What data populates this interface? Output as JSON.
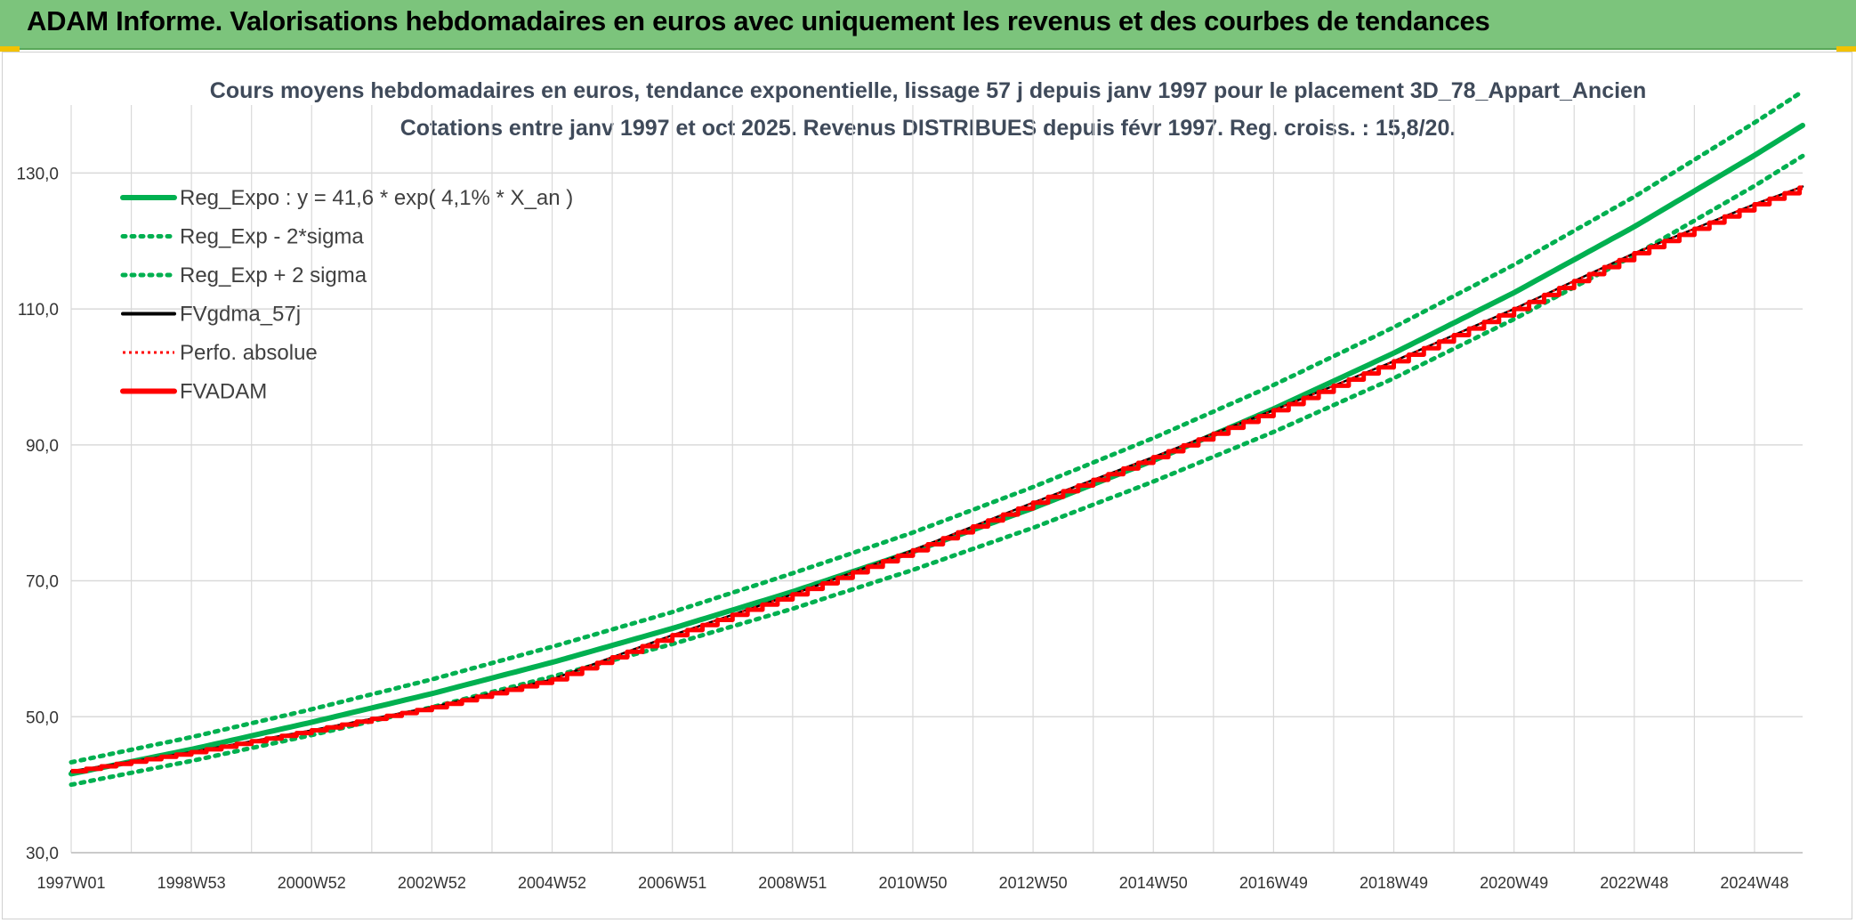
{
  "banner": {
    "title": "ADAM Informe. Valorisations hebdomadaires en euros avec uniquement les revenus et des courbes de tendances"
  },
  "colors": {
    "banner_bg": "#7cc47c",
    "reg_green": "#00b050",
    "fvadam_red": "#ff0000",
    "gdma_black": "#000000",
    "grid": "#d9d9d9"
  },
  "chart_data": {
    "type": "line",
    "title": "Cours moyens hebdomadaires en euros, tendance exponentielle, lissage 57 j depuis janv 1997 pour le placement 3D_78_Appart_Ancien",
    "subtitle": "Cotations entre janv 1997 et oct 2025. Revenus DISTRIBUES depuis févr 1997. Reg. croiss. : 15,8/20.",
    "xlabel": "",
    "ylabel": "",
    "x_range": [
      1997.0,
      2025.8
    ],
    "ylim": [
      30,
      140
    ],
    "y_ticks": [
      "30,0",
      "50,0",
      "70,0",
      "90,0",
      "110,0",
      "130,0"
    ],
    "y_tick_values": [
      30,
      50,
      70,
      90,
      110,
      130
    ],
    "x_tick_labels": [
      "1997W01",
      "1998W53",
      "2000W52",
      "2002W52",
      "2004W52",
      "2006W51",
      "2008W51",
      "2010W50",
      "2012W50",
      "2014W50",
      "2016W49",
      "2018W49",
      "2020W49",
      "2022W48",
      "2024W48"
    ],
    "x_tick_values": [
      1997.0,
      1999.0,
      2001.0,
      2003.0,
      2005.0,
      2007.0,
      2009.0,
      2011.0,
      2013.0,
      2015.0,
      2017.0,
      2019.0,
      2021.0,
      2023.0,
      2025.0
    ],
    "grid": true,
    "legend_position": "top-left",
    "legend": [
      {
        "label": "Reg_Expo : y = 41,6 * exp( 4,1% *  X_an )",
        "color": "#00b050",
        "style": "solid-thick"
      },
      {
        "label": "Reg_Exp - 2*sigma",
        "color": "#00b050",
        "style": "dotted"
      },
      {
        "label": "Reg_Exp + 2 sigma",
        "color": "#00b050",
        "style": "dotted"
      },
      {
        "label": "FVgdma_57j",
        "color": "#000000",
        "style": "solid"
      },
      {
        "label": "Perfo. absolue",
        "color": "#ff0000",
        "style": "dotted-thin"
      },
      {
        "label": "FVADAM",
        "color": "#ff0000",
        "style": "solid-thick"
      }
    ],
    "series": [
      {
        "name": "Reg_Expo : y = 41,6 * exp( 4,1% *  X_an )",
        "x": [
          1997,
          1999,
          2001,
          2003,
          2005,
          2007,
          2009,
          2011,
          2013,
          2015,
          2017,
          2019,
          2021,
          2023,
          2025,
          2025.8
        ],
        "values": [
          41.6,
          45.2,
          49.2,
          53.4,
          58.0,
          63.0,
          68.4,
          74.3,
          80.7,
          87.7,
          95.3,
          103.5,
          112.4,
          122.1,
          132.6,
          137.0
        ]
      },
      {
        "name": "Reg_Exp - 2*sigma",
        "x": [
          1997,
          1999,
          2001,
          2003,
          2005,
          2007,
          2009,
          2011,
          2013,
          2015,
          2017,
          2019,
          2021,
          2023,
          2025,
          2025.8
        ],
        "values": [
          40.0,
          43.5,
          47.3,
          51.4,
          55.9,
          60.7,
          65.9,
          71.6,
          77.8,
          84.6,
          91.9,
          99.8,
          108.5,
          117.9,
          128.1,
          132.5
        ]
      },
      {
        "name": "Reg_Exp + 2 sigma",
        "x": [
          1997,
          1999,
          2001,
          2003,
          2005,
          2007,
          2009,
          2011,
          2013,
          2015,
          2017,
          2019,
          2021,
          2023,
          2025,
          2025.8
        ],
        "values": [
          43.3,
          47.0,
          51.1,
          55.5,
          60.3,
          65.4,
          71.1,
          77.1,
          83.8,
          91.0,
          98.8,
          107.3,
          116.5,
          126.5,
          137.4,
          142.0
        ]
      },
      {
        "name": "FVgdma_57j",
        "x": [
          1997,
          1999,
          2001,
          2003,
          2005,
          2007,
          2009,
          2011,
          2013,
          2015,
          2017,
          2019,
          2021,
          2023,
          2025,
          2025.8
        ],
        "values": [
          42.0,
          44.8,
          48.0,
          51.4,
          55.5,
          62.0,
          68.0,
          74.5,
          81.5,
          88.2,
          95.1,
          102.3,
          110.0,
          118.2,
          125.4,
          128.0
        ]
      },
      {
        "name": "Perfo. absolue",
        "x": [
          1997,
          1999,
          2001,
          2003,
          2005,
          2007,
          2009,
          2011,
          2013,
          2015,
          2017,
          2019,
          2021,
          2023,
          2025,
          2025.8
        ],
        "values": [
          42.0,
          44.8,
          48.0,
          51.4,
          55.5,
          62.0,
          68.0,
          74.5,
          81.5,
          88.2,
          95.1,
          102.3,
          110.0,
          118.2,
          125.4,
          128.0
        ]
      },
      {
        "name": "FVADAM",
        "x": [
          1997,
          1999,
          2001,
          2003,
          2005,
          2007,
          2009,
          2011,
          2013,
          2015,
          2017,
          2019,
          2021,
          2023,
          2025,
          2025.8
        ],
        "values": [
          42.0,
          44.8,
          48.0,
          51.4,
          55.5,
          62.0,
          68.0,
          74.5,
          81.5,
          88.2,
          95.1,
          102.3,
          110.0,
          118.2,
          125.4,
          128.0
        ]
      }
    ]
  }
}
